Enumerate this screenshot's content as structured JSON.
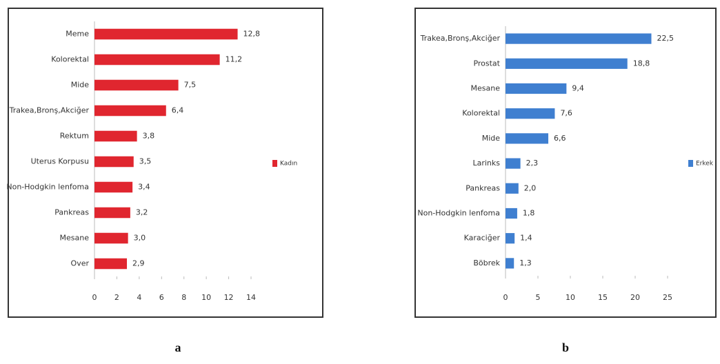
{
  "chart_data": [
    {
      "type": "bar",
      "orientation": "horizontal",
      "panel_label": "a",
      "categories": [
        "Meme",
        "Kolorektal",
        "Mide",
        "Trakea,Bronş,Akciğer",
        "Rektum",
        "Uterus Korpusu",
        "Non-Hodgkin lenfoma",
        "Pankreas",
        "Mesane",
        "Over"
      ],
      "series": [
        {
          "name": "Kadın",
          "color": "#e0262f",
          "values": [
            12.8,
            11.2,
            7.5,
            6.4,
            3.8,
            3.5,
            3.4,
            3.2,
            3.0,
            2.9
          ],
          "value_labels": [
            "12,8",
            "11,2",
            "7,5",
            "6,4",
            "3,8",
            "3,5",
            "3,4",
            "3,2",
            "3,0",
            "2,9"
          ]
        }
      ],
      "xlim": [
        0,
        14
      ],
      "xticks": [
        0,
        2,
        4,
        6,
        8,
        10,
        12,
        14
      ],
      "legend": "right"
    },
    {
      "type": "bar",
      "orientation": "horizontal",
      "panel_label": "b",
      "categories": [
        "Trakea,Bronş,Akciğer",
        "Prostat",
        "Mesane",
        "Kolorektal",
        "Mide",
        "Larinks",
        "Pankreas",
        "Non-Hodgkin lenfoma",
        "Karaciğer",
        "Böbrek"
      ],
      "series": [
        {
          "name": "Erkek",
          "color": "#3f7fd0",
          "values": [
            22.5,
            18.8,
            9.4,
            7.6,
            6.6,
            2.3,
            2.0,
            1.8,
            1.4,
            1.3
          ],
          "value_labels": [
            "22,5",
            "18,8",
            "9,4",
            "7,6",
            "6,6",
            "2,3",
            "2,0",
            "1,8",
            "1,4",
            "1,3"
          ]
        }
      ],
      "xlim": [
        0,
        25
      ],
      "xticks": [
        0,
        5,
        10,
        15,
        20,
        25
      ],
      "legend": "right"
    }
  ]
}
